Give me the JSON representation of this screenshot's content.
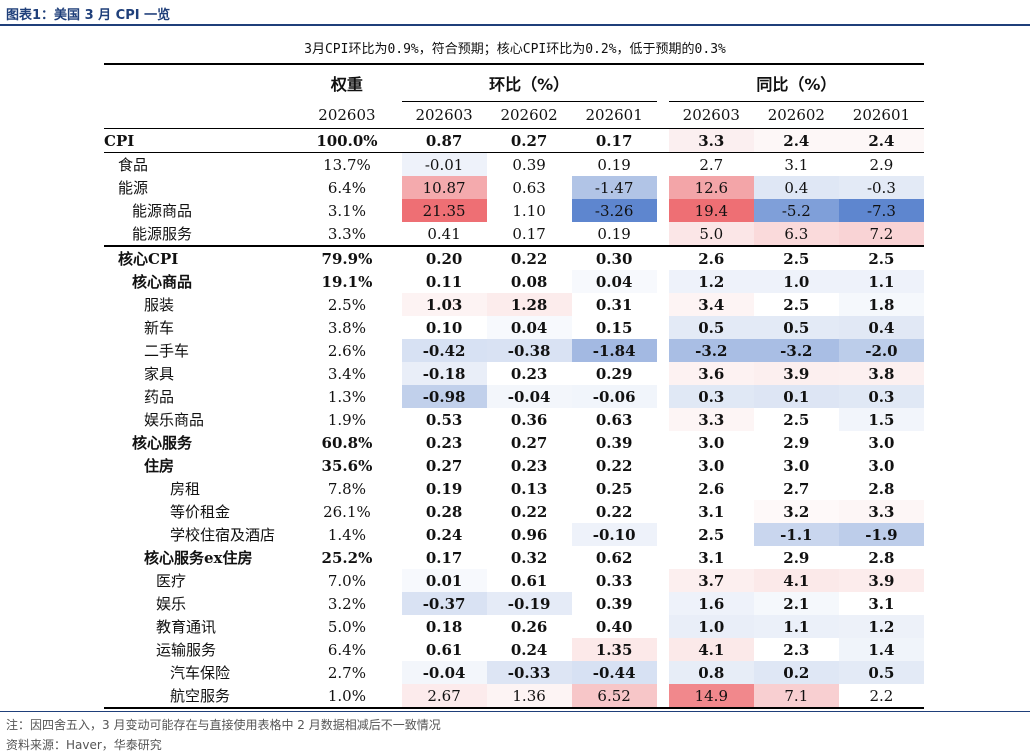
{
  "figure": {
    "label": "图表1：",
    "title": "美国 3 月 CPI 一览",
    "subtitle": "3月CPI环比为0.9%，符合预期；核心CPI环比为0.2%，低于预期的0.3%"
  },
  "headers": {
    "weight": "权重",
    "mom": "环比（%）",
    "yoy": "同比（%）",
    "weight_period": "202603",
    "mom_periods": [
      "202603",
      "202602",
      "202601"
    ],
    "yoy_periods": [
      "202603",
      "202602",
      "202601"
    ]
  },
  "rows": [
    {
      "label": "CPI",
      "indent": 0,
      "weight": "100.0%",
      "mom": [
        "0.87",
        "0.27",
        "0.17"
      ],
      "yoy": [
        "3.3",
        "2.4",
        "2.4"
      ],
      "bold_label": true,
      "bold_values": true,
      "row_style": "cpi",
      "mom_colors": [
        "#ffffff",
        "#ffffff",
        "#ffffff"
      ],
      "yoy_colors": [
        "#fbeff0",
        "#fdf7f7",
        "#fdf7f7"
      ]
    },
    {
      "label": "食品",
      "indent": 1,
      "weight": "13.7%",
      "mom": [
        "-0.01",
        "0.39",
        "0.19"
      ],
      "yoy": [
        "2.7",
        "3.1",
        "2.9"
      ],
      "bold_label": false,
      "bold_values": false,
      "mom_colors": [
        "#eef2fa",
        "#ffffff",
        "#ffffff"
      ],
      "yoy_colors": [
        "#ffffff",
        "#ffffff",
        "#ffffff"
      ]
    },
    {
      "label": "能源",
      "indent": 1,
      "weight": "6.4%",
      "mom": [
        "10.87",
        "0.63",
        "-1.47"
      ],
      "yoy": [
        "12.6",
        "0.4",
        "-0.3"
      ],
      "bold_label": false,
      "bold_values": false,
      "mom_colors": [
        "#f4aaad",
        "#ffffff",
        "#b1c4e6"
      ],
      "yoy_colors": [
        "#f3a5a8",
        "#dfe7f5",
        "#e3eaf6"
      ]
    },
    {
      "label": "能源商品",
      "indent": 2,
      "weight": "3.1%",
      "mom": [
        "21.35",
        "1.10",
        "-3.26"
      ],
      "yoy": [
        "19.4",
        "-5.2",
        "-7.3"
      ],
      "bold_label": false,
      "bold_values": false,
      "mom_colors": [
        "#ee6f74",
        "#ffffff",
        "#5e86cf"
      ],
      "yoy_colors": [
        "#ee6f74",
        "#7f9fd9",
        "#5e86cf"
      ]
    },
    {
      "label": "能源服务",
      "indent": 2,
      "weight": "3.3%",
      "mom": [
        "0.41",
        "0.17",
        "0.19"
      ],
      "yoy": [
        "5.0",
        "6.3",
        "7.2"
      ],
      "bold_label": false,
      "bold_values": false,
      "mom_colors": [
        "#ffffff",
        "#ffffff",
        "#ffffff"
      ],
      "yoy_colors": [
        "#fbe6e7",
        "#fadadb",
        "#f9d3d5"
      ]
    },
    {
      "label": "核心CPI",
      "indent": 1,
      "weight": "79.9%",
      "mom": [
        "0.20",
        "0.22",
        "0.30"
      ],
      "yoy": [
        "2.6",
        "2.5",
        "2.5"
      ],
      "bold_label": true,
      "bold_values": true,
      "row_style": "core",
      "mom_colors": [
        "#ffffff",
        "#ffffff",
        "#ffffff"
      ],
      "yoy_colors": [
        "#ffffff",
        "#ffffff",
        "#ffffff"
      ]
    },
    {
      "label": "核心商品",
      "indent": 2,
      "weight": "19.1%",
      "mom": [
        "0.11",
        "0.08",
        "0.04"
      ],
      "yoy": [
        "1.2",
        "1.0",
        "1.1"
      ],
      "bold_label": true,
      "bold_values": true,
      "mom_colors": [
        "#ffffff",
        "#ffffff",
        "#f7f9fd"
      ],
      "yoy_colors": [
        "#eef2fa",
        "#eef2fa",
        "#eef2fa"
      ]
    },
    {
      "label": "服装",
      "indent": 3,
      "weight": "2.5%",
      "mom": [
        "1.03",
        "1.28",
        "0.31"
      ],
      "yoy": [
        "3.4",
        "2.5",
        "1.8"
      ],
      "bold_label": false,
      "bold_values": true,
      "mom_colors": [
        "#fdf3f3",
        "#fcecec",
        "#ffffff"
      ],
      "yoy_colors": [
        "#fdf4f4",
        "#ffffff",
        "#f5f8fc"
      ]
    },
    {
      "label": "新车",
      "indent": 3,
      "weight": "3.8%",
      "mom": [
        "0.10",
        "0.04",
        "0.15"
      ],
      "yoy": [
        "0.5",
        "0.5",
        "0.4"
      ],
      "bold_label": false,
      "bold_values": true,
      "mom_colors": [
        "#ffffff",
        "#f7f9fd",
        "#ffffff"
      ],
      "yoy_colors": [
        "#e3eaf6",
        "#e3eaf6",
        "#e1e8f5"
      ]
    },
    {
      "label": "二手车",
      "indent": 3,
      "weight": "2.6%",
      "mom": [
        "-0.42",
        "-0.38",
        "-1.84"
      ],
      "yoy": [
        "-3.2",
        "-3.2",
        "-2.0"
      ],
      "bold_label": false,
      "bold_values": true,
      "mom_colors": [
        "#d7e1f3",
        "#d9e2f3",
        "#a3b9e2"
      ],
      "yoy_colors": [
        "#a9bee4",
        "#a9bee4",
        "#bccdea"
      ]
    },
    {
      "label": "家具",
      "indent": 3,
      "weight": "3.4%",
      "mom": [
        "-0.18",
        "0.23",
        "0.29"
      ],
      "yoy": [
        "3.6",
        "3.9",
        "3.8"
      ],
      "bold_label": false,
      "bold_values": true,
      "mom_colors": [
        "#e9eef8",
        "#ffffff",
        "#ffffff"
      ],
      "yoy_colors": [
        "#fdf2f2",
        "#fcefef",
        "#fcf0f0"
      ]
    },
    {
      "label": "药品",
      "indent": 3,
      "weight": "1.3%",
      "mom": [
        "-0.98",
        "-0.04",
        "-0.06"
      ],
      "yoy": [
        "0.3",
        "0.1",
        "0.3"
      ],
      "bold_label": false,
      "bold_values": true,
      "mom_colors": [
        "#c1d0eb",
        "#f3f6fb",
        "#f1f5fb"
      ],
      "yoy_colors": [
        "#e0e8f5",
        "#dde5f4",
        "#e0e8f5"
      ]
    },
    {
      "label": "娱乐商品",
      "indent": 3,
      "weight": "1.9%",
      "mom": [
        "0.53",
        "0.36",
        "0.63"
      ],
      "yoy": [
        "3.3",
        "2.5",
        "1.5"
      ],
      "bold_label": false,
      "bold_values": true,
      "mom_colors": [
        "#ffffff",
        "#ffffff",
        "#ffffff"
      ],
      "yoy_colors": [
        "#fdf5f5",
        "#ffffff",
        "#f2f5fb"
      ]
    },
    {
      "label": "核心服务",
      "indent": 2,
      "weight": "60.8%",
      "mom": [
        "0.23",
        "0.27",
        "0.39"
      ],
      "yoy": [
        "3.0",
        "2.9",
        "3.0"
      ],
      "bold_label": true,
      "bold_values": true,
      "mom_colors": [
        "#ffffff",
        "#ffffff",
        "#ffffff"
      ],
      "yoy_colors": [
        "#ffffff",
        "#ffffff",
        "#ffffff"
      ]
    },
    {
      "label": "住房",
      "indent": 3,
      "weight": "35.6%",
      "mom": [
        "0.27",
        "0.23",
        "0.22"
      ],
      "yoy": [
        "3.0",
        "3.0",
        "3.0"
      ],
      "bold_label": true,
      "bold_values": true,
      "mom_colors": [
        "#ffffff",
        "#ffffff",
        "#ffffff"
      ],
      "yoy_colors": [
        "#ffffff",
        "#ffffff",
        "#ffffff"
      ]
    },
    {
      "label": "房租",
      "indent": 4,
      "weight": "7.8%",
      "mom": [
        "0.19",
        "0.13",
        "0.25"
      ],
      "yoy": [
        "2.6",
        "2.7",
        "2.8"
      ],
      "bold_label": false,
      "bold_values": true,
      "mom_colors": [
        "#ffffff",
        "#ffffff",
        "#ffffff"
      ],
      "yoy_colors": [
        "#ffffff",
        "#ffffff",
        "#ffffff"
      ]
    },
    {
      "label": "等价租金",
      "indent": 4,
      "weight": "26.1%",
      "mom": [
        "0.28",
        "0.22",
        "0.22"
      ],
      "yoy": [
        "3.1",
        "3.2",
        "3.3"
      ],
      "bold_label": false,
      "bold_values": true,
      "mom_colors": [
        "#ffffff",
        "#ffffff",
        "#ffffff"
      ],
      "yoy_colors": [
        "#ffffff",
        "#fef9f9",
        "#fdf6f6"
      ]
    },
    {
      "label": "学校住宿及酒店",
      "indent": 4,
      "weight": "1.4%",
      "mom": [
        "0.24",
        "0.96",
        "-0.10"
      ],
      "yoy": [
        "2.5",
        "-1.1",
        "-1.9"
      ],
      "bold_label": false,
      "bold_values": true,
      "mom_colors": [
        "#ffffff",
        "#ffffff",
        "#eef2fa"
      ],
      "yoy_colors": [
        "#ffffff",
        "#c9d6ee",
        "#bdcdea"
      ]
    },
    {
      "label": "核心服务ex住房",
      "indent": 3,
      "weight": "25.2%",
      "mom": [
        "0.17",
        "0.32",
        "0.62"
      ],
      "yoy": [
        "3.1",
        "2.9",
        "2.8"
      ],
      "bold_label": true,
      "bold_values": true,
      "mom_colors": [
        "#ffffff",
        "#ffffff",
        "#ffffff"
      ],
      "yoy_colors": [
        "#ffffff",
        "#ffffff",
        "#ffffff"
      ]
    },
    {
      "label": "医疗",
      "indent": 4,
      "weight": "7.0%",
      "mom": [
        "0.01",
        "0.61",
        "0.33"
      ],
      "yoy": [
        "3.7",
        "4.1",
        "3.9"
      ],
      "bold_label": false,
      "bold_values": true,
      "mom_colors": [
        "#f7f9fd",
        "#ffffff",
        "#ffffff"
      ],
      "yoy_colors": [
        "#fcefef",
        "#fbe9e9",
        "#fcecec"
      ]
    },
    {
      "label": "娱乐",
      "indent": 4,
      "weight": "3.2%",
      "mom": [
        "-0.37",
        "-0.19",
        "0.39"
      ],
      "yoy": [
        "1.6",
        "2.1",
        "3.1"
      ],
      "bold_label": false,
      "bold_values": true,
      "mom_colors": [
        "#d9e2f3",
        "#e5ebf7",
        "#ffffff"
      ],
      "yoy_colors": [
        "#eef2fa",
        "#f5f8fc",
        "#ffffff"
      ]
    },
    {
      "label": "教育通讯",
      "indent": 4,
      "weight": "5.0%",
      "mom": [
        "0.18",
        "0.26",
        "0.40"
      ],
      "yoy": [
        "1.0",
        "1.1",
        "1.2"
      ],
      "bold_label": false,
      "bold_values": true,
      "mom_colors": [
        "#ffffff",
        "#ffffff",
        "#ffffff"
      ],
      "yoy_colors": [
        "#e9eef8",
        "#ebf0f9",
        "#edf1f9"
      ]
    },
    {
      "label": "运输服务",
      "indent": 4,
      "weight": "6.4%",
      "mom": [
        "0.61",
        "0.24",
        "1.35"
      ],
      "yoy": [
        "4.1",
        "2.3",
        "1.4"
      ],
      "bold_label": false,
      "bold_values": true,
      "mom_colors": [
        "#ffffff",
        "#ffffff",
        "#fce9e9"
      ],
      "yoy_colors": [
        "#fbe9e9",
        "#ffffff",
        "#f0f4fa"
      ]
    },
    {
      "label": "汽车保险",
      "indent": 5,
      "weight": "2.7%",
      "mom": [
        "-0.04",
        "-0.33",
        "-0.44"
      ],
      "yoy": [
        "0.8",
        "0.2",
        "0.5"
      ],
      "bold_label": false,
      "bold_values": true,
      "mom_colors": [
        "#f3f6fb",
        "#dde5f4",
        "#d7e1f3"
      ],
      "yoy_colors": [
        "#e7edf7",
        "#dfe7f5",
        "#e3eaf6"
      ]
    },
    {
      "label": "航空服务",
      "indent": 5,
      "weight": "1.0%",
      "mom": [
        "2.67",
        "1.36",
        "6.52"
      ],
      "yoy": [
        "14.9",
        "7.1",
        "2.2"
      ],
      "bold_label": false,
      "bold_values": false,
      "row_style": "last",
      "mom_colors": [
        "#fcebec",
        "#fdf4f4",
        "#f7c6c8"
      ],
      "yoy_colors": [
        "#f1888c",
        "#f8cfd1",
        "#ffffff"
      ]
    }
  ],
  "footer": {
    "note": "注：因四舍五入，3 月变动可能存在与直接使用表格中 2 月数据相减后不一致情况",
    "source": "资料来源：Haver，华泰研究"
  }
}
